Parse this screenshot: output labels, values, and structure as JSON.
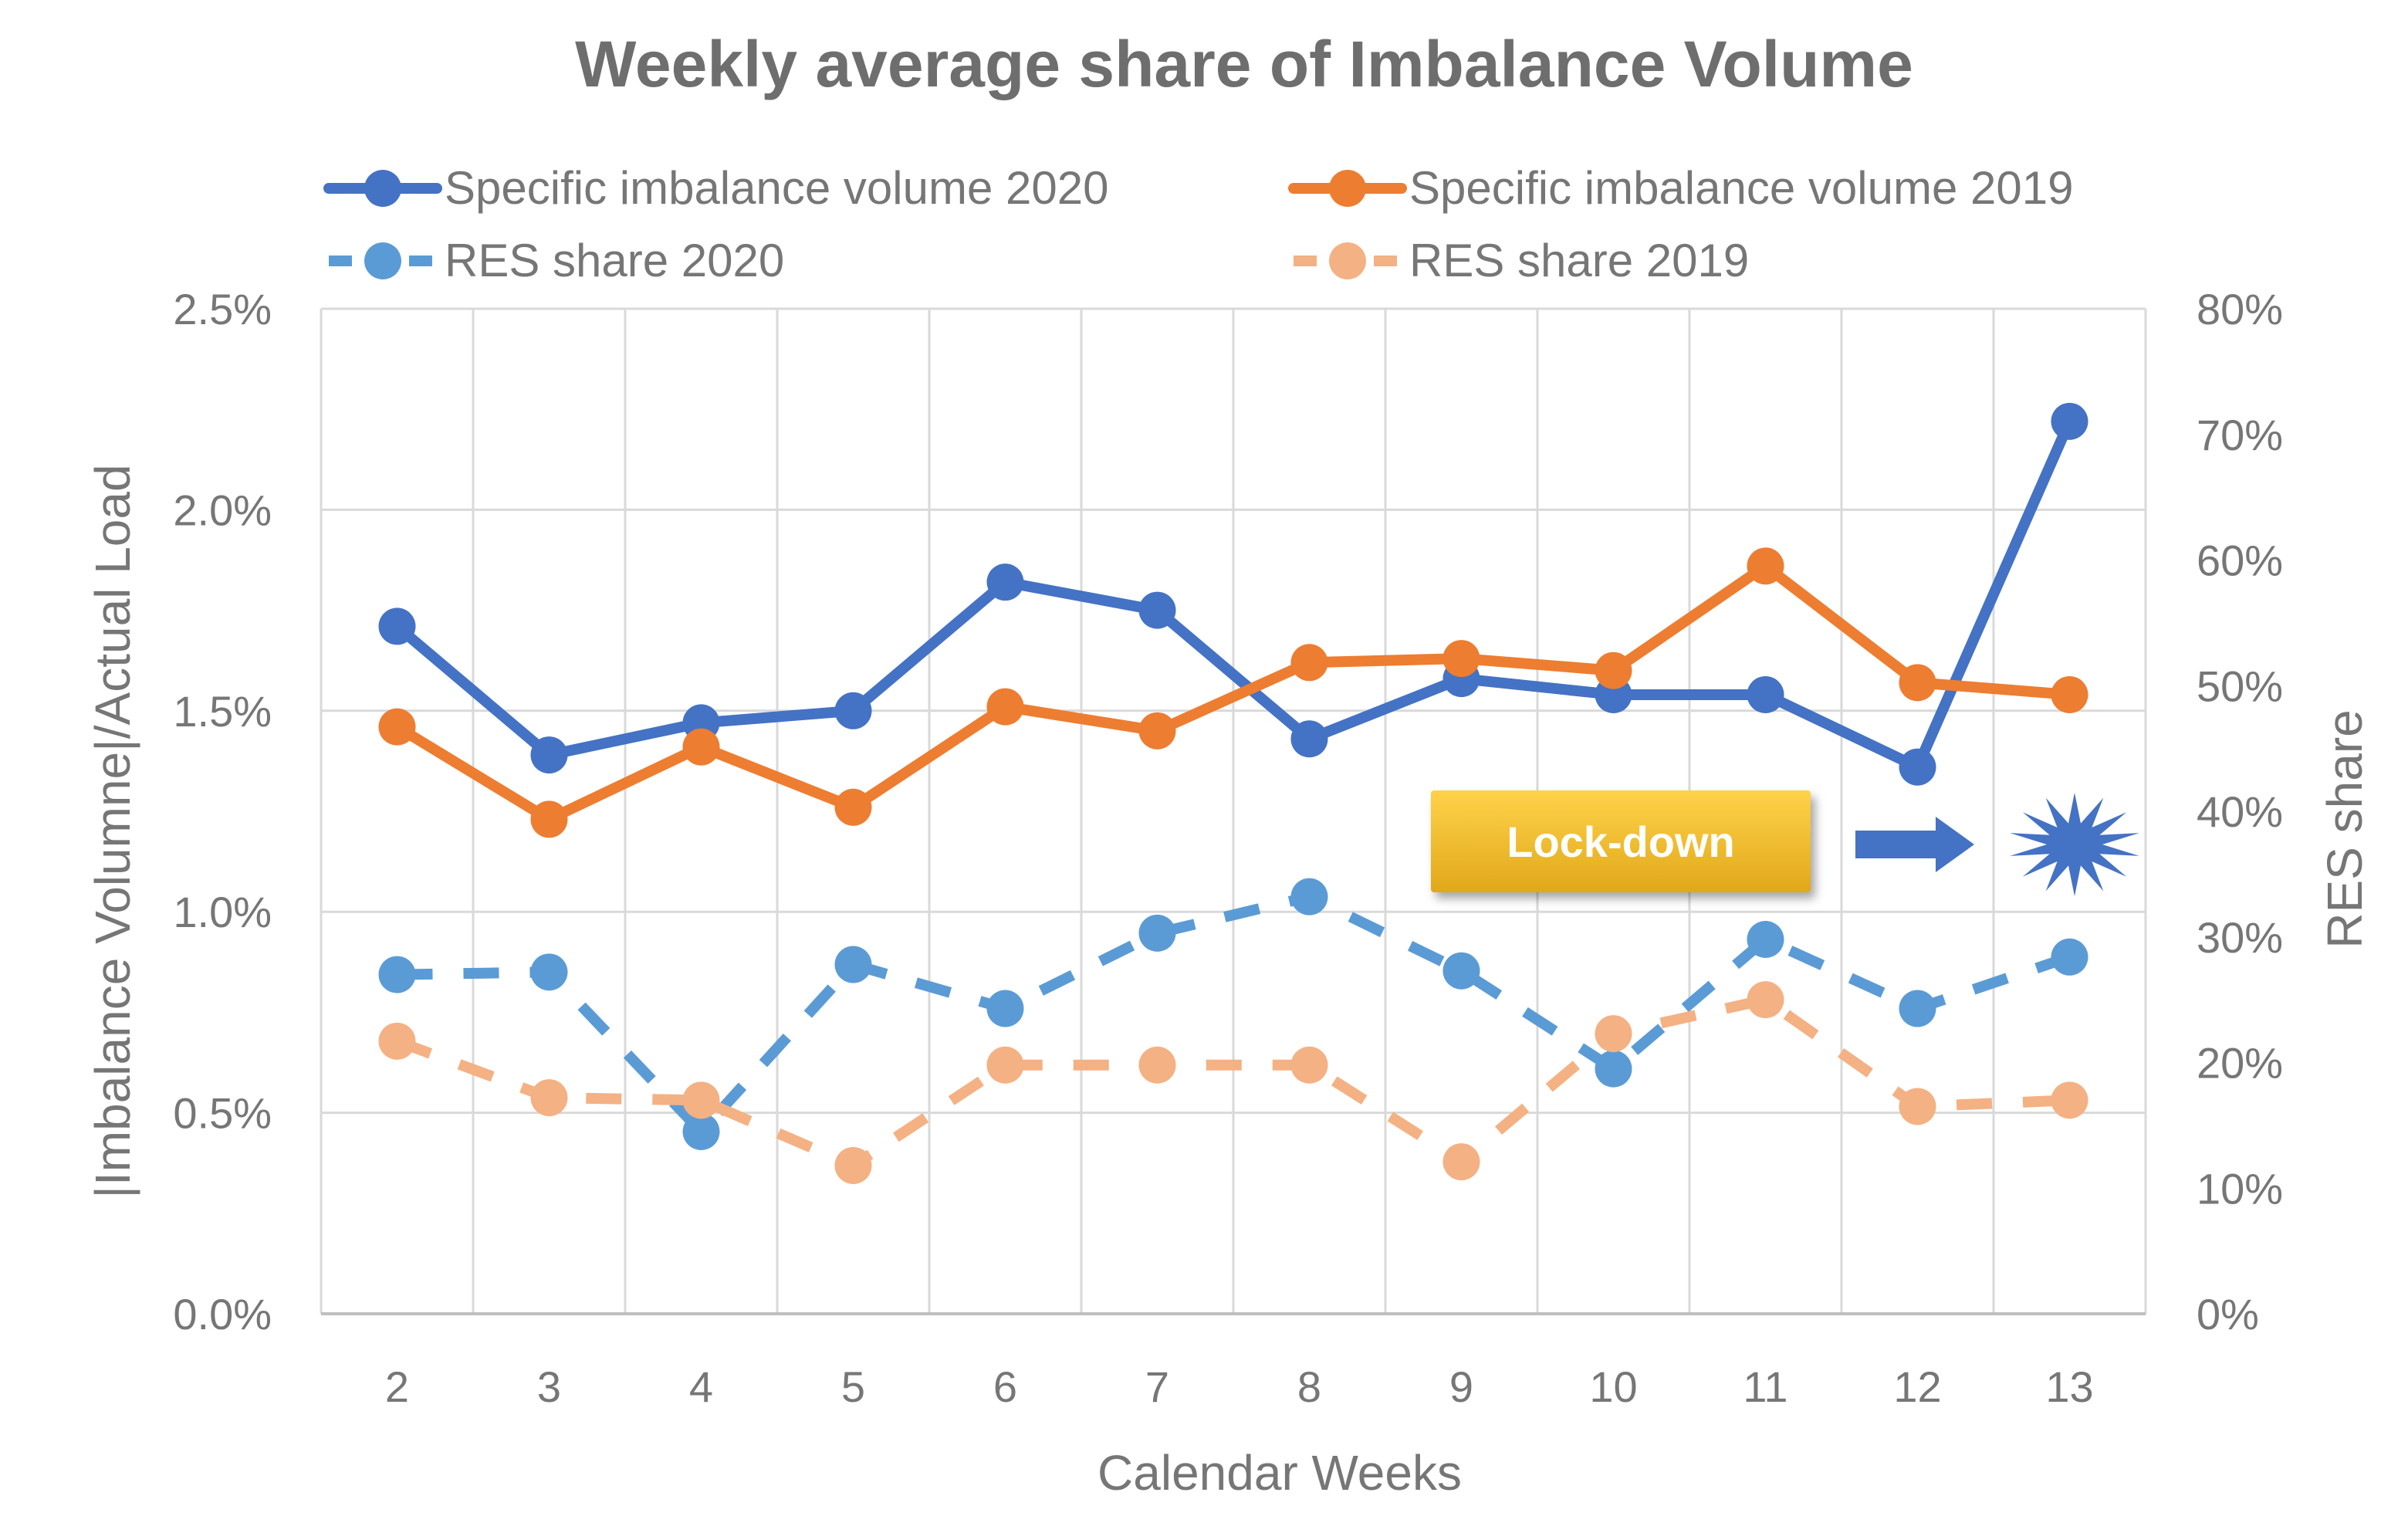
{
  "chart_data": {
    "type": "line",
    "title": "Weekly average share of Imbalance Volume",
    "xlabel": "Calendar Weeks",
    "ylabel_left": "|Imbalance Volumne|/Actual Load",
    "ylabel_right": "RES share",
    "categories": [
      "2",
      "3",
      "4",
      "5",
      "6",
      "7",
      "8",
      "9",
      "10",
      "11",
      "12",
      "13"
    ],
    "y_left": {
      "min": 0.0,
      "max": 0.025,
      "ticks": [
        0.0,
        0.005,
        0.01,
        0.015,
        0.02,
        0.025
      ],
      "tick_labels": [
        "0.0%",
        "0.5%",
        "1.0%",
        "1.5%",
        "2.0%",
        "2.5%"
      ]
    },
    "y_right": {
      "min": 0.0,
      "max": 0.8,
      "ticks": [
        0.0,
        0.1,
        0.2,
        0.3,
        0.4,
        0.5,
        0.6,
        0.7,
        0.8
      ],
      "tick_labels": [
        "0%",
        "10%",
        "20%",
        "30%",
        "40%",
        "50%",
        "60%",
        "70%",
        "80%"
      ]
    },
    "grid": true,
    "legend_position": "top",
    "series": [
      {
        "name": "Specific imbalance volume 2020",
        "axis": "left",
        "style": "solid",
        "color": "#4472C4",
        "values": [
          0.0171,
          0.0139,
          0.0147,
          0.015,
          0.0182,
          0.0175,
          0.0143,
          0.0158,
          0.0154,
          0.0154,
          0.0136,
          0.0222
        ]
      },
      {
        "name": "Specific imbalance volume 2019",
        "axis": "left",
        "style": "solid",
        "color": "#ED7D31",
        "values": [
          0.0146,
          0.0123,
          0.0141,
          0.0126,
          0.0151,
          0.0145,
          0.0162,
          0.0163,
          0.016,
          0.0186,
          0.0157,
          0.0154
        ]
      },
      {
        "name": "RES share 2020",
        "axis": "right",
        "style": "dashed",
        "color": "#5B9BD5",
        "values": [
          0.27,
          0.272,
          0.145,
          0.278,
          0.243,
          0.303,
          0.332,
          0.273,
          0.195,
          0.298,
          0.243,
          0.284
        ]
      },
      {
        "name": "RES share 2019",
        "axis": "right",
        "style": "dashed",
        "color": "#F4B183",
        "values": [
          0.217,
          0.172,
          0.17,
          0.118,
          0.198,
          0.198,
          0.198,
          0.121,
          0.223,
          0.25,
          0.165,
          0.17
        ]
      }
    ],
    "annotation": {
      "label": "Lock-down",
      "box_color_top": "#FFD24A",
      "box_color_bottom": "#E0A81A",
      "arrow_color": "#4472C4",
      "burst_color": "#4472C4"
    }
  },
  "colors": {
    "axis_text": "#767676",
    "grid": "#D9D9D9",
    "title": "#6E6E6E"
  }
}
